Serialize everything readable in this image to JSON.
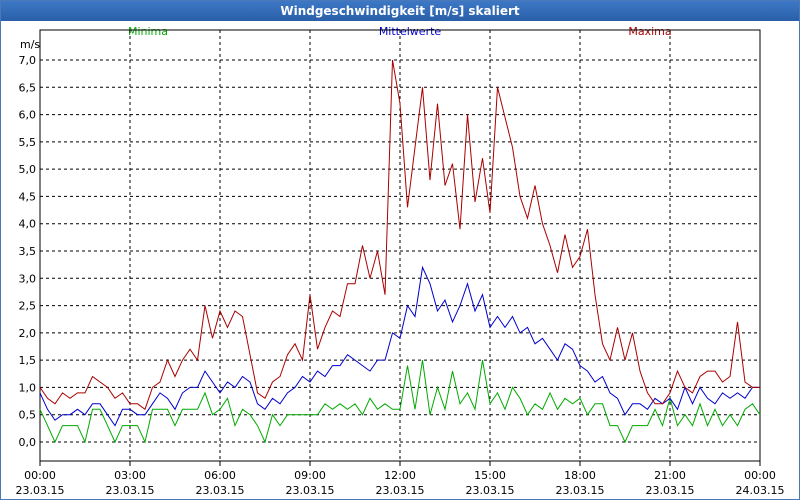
{
  "window": {
    "title": "Windgeschwindigkeit [m/s] skaliert"
  },
  "colors": {
    "minima": "#00aa00",
    "mittelwerte": "#0000cc",
    "maxima": "#aa0000",
    "grid": "#000000",
    "titlebar": "#2f68b4"
  },
  "chart_data": {
    "type": "line",
    "title": "Windgeschwindigkeit [m/s] skaliert",
    "ylabel": "m/s",
    "xlabel": "",
    "ylim": [
      0,
      7
    ],
    "xlim": [
      0,
      24
    ],
    "yticks": [
      0,
      0.5,
      1,
      1.5,
      2,
      2.5,
      3,
      3.5,
      4,
      4.5,
      5,
      5.5,
      6,
      6.5,
      7
    ],
    "ytick_labels": [
      "0,0",
      "0,5",
      "1,0",
      "1,5",
      "2,0",
      "2,5",
      "3,0",
      "3,5",
      "4,0",
      "4,5",
      "5,0",
      "5,5",
      "6,0",
      "6,5",
      "7,0"
    ],
    "xticks": [
      0,
      3,
      6,
      9,
      12,
      15,
      18,
      21,
      24
    ],
    "xtick_labels": [
      {
        "time": "00:00",
        "date": "23.03.15"
      },
      {
        "time": "03:00",
        "date": "23.03.15"
      },
      {
        "time": "06:00",
        "date": "23.03.15"
      },
      {
        "time": "09:00",
        "date": "23.03.15"
      },
      {
        "time": "12:00",
        "date": "23.03.15"
      },
      {
        "time": "15:00",
        "date": "23.03.15"
      },
      {
        "time": "18:00",
        "date": "23.03.15"
      },
      {
        "time": "21:00",
        "date": "23.03.15"
      },
      {
        "time": "00:00",
        "date": "24.03.15"
      }
    ],
    "grid": true,
    "legend_position": "top",
    "series": [
      {
        "name": "Minima",
        "color": "#00aa00",
        "points": [
          [
            0,
            0.6
          ],
          [
            0.25,
            0.3
          ],
          [
            0.5,
            0
          ],
          [
            0.75,
            0.3
          ],
          [
            1,
            0.3
          ],
          [
            1.25,
            0.3
          ],
          [
            1.5,
            0
          ],
          [
            1.75,
            0.6
          ],
          [
            2,
            0.6
          ],
          [
            2.25,
            0.3
          ],
          [
            2.5,
            0
          ],
          [
            2.75,
            0.3
          ],
          [
            3,
            0.3
          ],
          [
            3.25,
            0.3
          ],
          [
            3.5,
            0
          ],
          [
            3.75,
            0.6
          ],
          [
            4,
            0.6
          ],
          [
            4.25,
            0.6
          ],
          [
            4.5,
            0.3
          ],
          [
            4.75,
            0.6
          ],
          [
            5,
            0.6
          ],
          [
            5.25,
            0.6
          ],
          [
            5.5,
            0.9
          ],
          [
            5.75,
            0.5
          ],
          [
            6,
            0.6
          ],
          [
            6.25,
            0.8
          ],
          [
            6.5,
            0.3
          ],
          [
            6.75,
            0.6
          ],
          [
            7,
            0.5
          ],
          [
            7.25,
            0.3
          ],
          [
            7.5,
            0
          ],
          [
            7.75,
            0.5
          ],
          [
            8,
            0.3
          ],
          [
            8.25,
            0.5
          ],
          [
            8.5,
            0.5
          ],
          [
            8.75,
            0.5
          ],
          [
            9,
            0.5
          ],
          [
            9.25,
            0.5
          ],
          [
            9.5,
            0.7
          ],
          [
            9.75,
            0.6
          ],
          [
            10,
            0.7
          ],
          [
            10.25,
            0.6
          ],
          [
            10.5,
            0.7
          ],
          [
            10.75,
            0.5
          ],
          [
            11,
            0.8
          ],
          [
            11.25,
            0.6
          ],
          [
            11.5,
            0.7
          ],
          [
            11.75,
            0.6
          ],
          [
            12,
            0.6
          ],
          [
            12.25,
            1.4
          ],
          [
            12.5,
            0.6
          ],
          [
            12.75,
            1.5
          ],
          [
            13,
            0.5
          ],
          [
            13.25,
            1
          ],
          [
            13.5,
            0.6
          ],
          [
            13.75,
            1.3
          ],
          [
            14,
            0.7
          ],
          [
            14.25,
            0.9
          ],
          [
            14.5,
            0.6
          ],
          [
            14.75,
            1.5
          ],
          [
            15,
            0.7
          ],
          [
            15.25,
            0.9
          ],
          [
            15.5,
            0.6
          ],
          [
            15.75,
            1.0
          ],
          [
            16,
            0.8
          ],
          [
            16.25,
            0.5
          ],
          [
            16.5,
            0.7
          ],
          [
            16.75,
            0.6
          ],
          [
            17,
            0.9
          ],
          [
            17.25,
            0.6
          ],
          [
            17.5,
            0.8
          ],
          [
            17.75,
            0.7
          ],
          [
            18,
            0.8
          ],
          [
            18.25,
            0.5
          ],
          [
            18.5,
            0.7
          ],
          [
            18.75,
            0.7
          ],
          [
            19,
            0.3
          ],
          [
            19.25,
            0.3
          ],
          [
            19.5,
            0
          ],
          [
            19.75,
            0.3
          ],
          [
            20,
            0.3
          ],
          [
            20.25,
            0.3
          ],
          [
            20.5,
            0.6
          ],
          [
            20.75,
            0.3
          ],
          [
            21,
            0.8
          ],
          [
            21.25,
            0.3
          ],
          [
            21.5,
            0.5
          ],
          [
            21.75,
            0.3
          ],
          [
            22,
            0.7
          ],
          [
            22.25,
            0.3
          ],
          [
            22.5,
            0.6
          ],
          [
            22.75,
            0.3
          ],
          [
            23,
            0.5
          ],
          [
            23.25,
            0.3
          ],
          [
            23.5,
            0.6
          ],
          [
            23.75,
            0.7
          ],
          [
            24,
            0.5
          ]
        ]
      },
      {
        "name": "Mittelwerte",
        "color": "#0000cc",
        "points": [
          [
            0,
            0.9
          ],
          [
            0.25,
            0.6
          ],
          [
            0.5,
            0.4
          ],
          [
            0.75,
            0.5
          ],
          [
            1,
            0.5
          ],
          [
            1.25,
            0.6
          ],
          [
            1.5,
            0.5
          ],
          [
            1.75,
            0.7
          ],
          [
            2,
            0.7
          ],
          [
            2.25,
            0.5
          ],
          [
            2.5,
            0.3
          ],
          [
            2.75,
            0.6
          ],
          [
            3,
            0.6
          ],
          [
            3.25,
            0.5
          ],
          [
            3.5,
            0.5
          ],
          [
            3.75,
            0.7
          ],
          [
            4,
            0.9
          ],
          [
            4.25,
            0.8
          ],
          [
            4.5,
            0.6
          ],
          [
            4.75,
            0.9
          ],
          [
            5,
            1.0
          ],
          [
            5.25,
            1.0
          ],
          [
            5.5,
            1.3
          ],
          [
            5.75,
            1.1
          ],
          [
            6,
            0.9
          ],
          [
            6.25,
            1.1
          ],
          [
            6.5,
            1.0
          ],
          [
            6.75,
            1.2
          ],
          [
            7,
            1.1
          ],
          [
            7.25,
            0.7
          ],
          [
            7.5,
            0.6
          ],
          [
            7.75,
            0.8
          ],
          [
            8,
            0.7
          ],
          [
            8.25,
            0.9
          ],
          [
            8.5,
            1.0
          ],
          [
            8.75,
            1.2
          ],
          [
            9,
            1.1
          ],
          [
            9.25,
            1.3
          ],
          [
            9.5,
            1.2
          ],
          [
            9.75,
            1.4
          ],
          [
            10,
            1.4
          ],
          [
            10.25,
            1.6
          ],
          [
            10.5,
            1.5
          ],
          [
            10.75,
            1.4
          ],
          [
            11,
            1.3
          ],
          [
            11.25,
            1.5
          ],
          [
            11.5,
            1.5
          ],
          [
            11.75,
            2.0
          ],
          [
            12,
            1.9
          ],
          [
            12.25,
            2.5
          ],
          [
            12.5,
            2.3
          ],
          [
            12.75,
            3.2
          ],
          [
            13,
            2.9
          ],
          [
            13.25,
            2.4
          ],
          [
            13.5,
            2.6
          ],
          [
            13.75,
            2.2
          ],
          [
            14,
            2.5
          ],
          [
            14.25,
            2.9
          ],
          [
            14.5,
            2.4
          ],
          [
            14.75,
            2.7
          ],
          [
            15,
            2.1
          ],
          [
            15.25,
            2.3
          ],
          [
            15.5,
            2.1
          ],
          [
            15.75,
            2.3
          ],
          [
            16,
            2.0
          ],
          [
            16.25,
            2.1
          ],
          [
            16.5,
            1.8
          ],
          [
            16.75,
            1.9
          ],
          [
            17,
            1.7
          ],
          [
            17.25,
            1.5
          ],
          [
            17.5,
            1.8
          ],
          [
            17.75,
            1.7
          ],
          [
            18,
            1.4
          ],
          [
            18.25,
            1.3
          ],
          [
            18.5,
            1.1
          ],
          [
            18.75,
            1.2
          ],
          [
            19,
            0.9
          ],
          [
            19.25,
            0.8
          ],
          [
            19.5,
            0.5
          ],
          [
            19.75,
            0.7
          ],
          [
            20,
            0.7
          ],
          [
            20.25,
            0.6
          ],
          [
            20.5,
            0.8
          ],
          [
            20.75,
            0.7
          ],
          [
            21,
            0.8
          ],
          [
            21.25,
            0.6
          ],
          [
            21.5,
            1.0
          ],
          [
            21.75,
            0.7
          ],
          [
            22,
            1.0
          ],
          [
            22.25,
            0.8
          ],
          [
            22.5,
            0.7
          ],
          [
            22.75,
            0.9
          ],
          [
            23,
            0.8
          ],
          [
            23.25,
            0.9
          ],
          [
            23.5,
            0.8
          ],
          [
            23.75,
            1.0
          ],
          [
            24,
            1.0
          ]
        ]
      },
      {
        "name": "Maxima",
        "color": "#aa0000",
        "points": [
          [
            0,
            1.0
          ],
          [
            0.25,
            0.8
          ],
          [
            0.5,
            0.7
          ],
          [
            0.75,
            0.9
          ],
          [
            1,
            0.8
          ],
          [
            1.25,
            0.9
          ],
          [
            1.5,
            0.9
          ],
          [
            1.75,
            1.2
          ],
          [
            2,
            1.1
          ],
          [
            2.25,
            1.0
          ],
          [
            2.5,
            0.8
          ],
          [
            2.75,
            0.9
          ],
          [
            3,
            0.7
          ],
          [
            3.25,
            0.7
          ],
          [
            3.5,
            0.6
          ],
          [
            3.75,
            1.0
          ],
          [
            4,
            1.1
          ],
          [
            4.25,
            1.5
          ],
          [
            4.5,
            1.2
          ],
          [
            4.75,
            1.5
          ],
          [
            5,
            1.7
          ],
          [
            5.25,
            1.5
          ],
          [
            5.5,
            2.5
          ],
          [
            5.75,
            1.9
          ],
          [
            6,
            2.4
          ],
          [
            6.25,
            2.1
          ],
          [
            6.5,
            2.4
          ],
          [
            6.75,
            2.3
          ],
          [
            7,
            1.6
          ],
          [
            7.25,
            0.9
          ],
          [
            7.5,
            0.8
          ],
          [
            7.75,
            1.1
          ],
          [
            8,
            1.2
          ],
          [
            8.25,
            1.6
          ],
          [
            8.5,
            1.8
          ],
          [
            8.75,
            1.5
          ],
          [
            9,
            2.7
          ],
          [
            9.25,
            1.7
          ],
          [
            9.5,
            2.1
          ],
          [
            9.75,
            2.4
          ],
          [
            10,
            2.3
          ],
          [
            10.25,
            2.9
          ],
          [
            10.5,
            2.9
          ],
          [
            10.75,
            3.6
          ],
          [
            11,
            3.0
          ],
          [
            11.25,
            3.5
          ],
          [
            11.5,
            2.7
          ],
          [
            11.75,
            7.0
          ],
          [
            12,
            6.2
          ],
          [
            12.25,
            4.3
          ],
          [
            12.5,
            5.4
          ],
          [
            12.75,
            6.5
          ],
          [
            13,
            4.8
          ],
          [
            13.25,
            6.2
          ],
          [
            13.5,
            4.7
          ],
          [
            13.75,
            5.1
          ],
          [
            14,
            3.9
          ],
          [
            14.25,
            6.0
          ],
          [
            14.5,
            4.4
          ],
          [
            14.75,
            5.2
          ],
          [
            15,
            4.2
          ],
          [
            15.25,
            6.5
          ],
          [
            15.75,
            5.4
          ],
          [
            16,
            4.5
          ],
          [
            16.25,
            4.1
          ],
          [
            16.5,
            4.7
          ],
          [
            16.75,
            4.0
          ],
          [
            17,
            3.6
          ],
          [
            17.25,
            3.1
          ],
          [
            17.5,
            3.8
          ],
          [
            17.75,
            3.2
          ],
          [
            18,
            3.4
          ],
          [
            18.25,
            3.9
          ],
          [
            18.5,
            2.7
          ],
          [
            18.75,
            1.8
          ],
          [
            19,
            1.5
          ],
          [
            19.25,
            2.1
          ],
          [
            19.5,
            1.5
          ],
          [
            19.75,
            2.0
          ],
          [
            20,
            1.3
          ],
          [
            20.25,
            0.9
          ],
          [
            20.5,
            0.7
          ],
          [
            20.75,
            0.7
          ],
          [
            21,
            0.9
          ],
          [
            21.25,
            1.3
          ],
          [
            21.5,
            1.0
          ],
          [
            21.75,
            0.9
          ],
          [
            22,
            1.2
          ],
          [
            22.25,
            1.3
          ],
          [
            22.5,
            1.3
          ],
          [
            22.75,
            1.1
          ],
          [
            23,
            1.2
          ],
          [
            23.25,
            2.2
          ],
          [
            23.5,
            1.1
          ],
          [
            23.75,
            1.0
          ],
          [
            24,
            1.0
          ]
        ]
      }
    ]
  }
}
